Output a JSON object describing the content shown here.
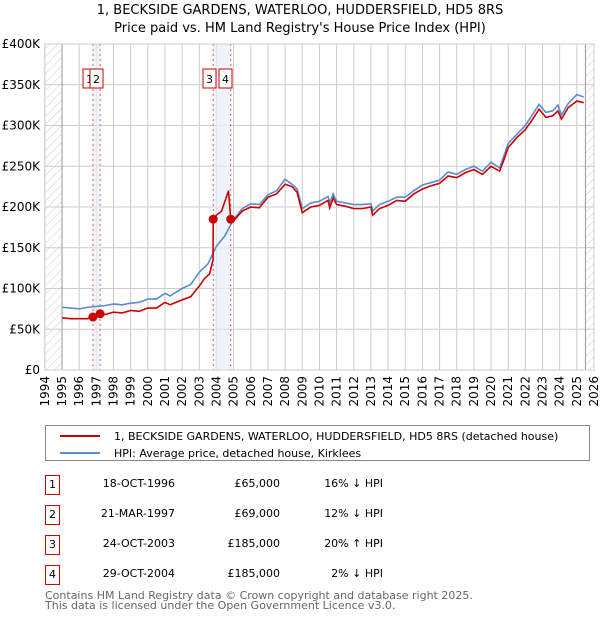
{
  "chart_data": {
    "type": "line",
    "title": "1, BECKSIDE GARDENS, WATERLOO, HUDDERSFIELD, HD5 8RS",
    "subtitle": "Price paid vs. HM Land Registry's House Price Index (HPI)",
    "xlim": [
      1994,
      2026
    ],
    "ylim": [
      0,
      400000
    ],
    "y_ticks": [
      "£0",
      "£50K",
      "£100K",
      "£150K",
      "£200K",
      "£250K",
      "£300K",
      "£350K",
      "£400K"
    ],
    "y_tick_values": [
      0,
      50000,
      100000,
      150000,
      200000,
      250000,
      300000,
      350000,
      400000
    ],
    "x_ticks": [
      "1994",
      "1995",
      "1996",
      "1997",
      "1998",
      "1999",
      "2000",
      "2001",
      "2002",
      "2003",
      "2004",
      "2005",
      "2006",
      "2007",
      "2008",
      "2009",
      "2010",
      "2011",
      "2012",
      "2013",
      "2014",
      "2015",
      "2016",
      "2017",
      "2018",
      "2019",
      "2020",
      "2021",
      "2022",
      "2023",
      "2024",
      "2025",
      "2026"
    ],
    "grid": true,
    "data_range": [
      1995,
      2025.5
    ],
    "series": [
      {
        "name": "1, BECKSIDE GARDENS, WATERLOO, HUDDERSFIELD, HD5 8RS (detached house)",
        "color": "#cc0000",
        "points": [
          [
            1995,
            64
          ],
          [
            1995.5,
            63
          ],
          [
            1996,
            63
          ],
          [
            1996.5,
            63
          ],
          [
            1996.8,
            65
          ],
          [
            1997.22,
            69
          ],
          [
            1997.5,
            68
          ],
          [
            1998,
            71
          ],
          [
            1998.5,
            70
          ],
          [
            1999,
            73
          ],
          [
            1999.5,
            72
          ],
          [
            2000,
            76
          ],
          [
            2000.5,
            76
          ],
          [
            2001,
            83
          ],
          [
            2001.3,
            80
          ],
          [
            2002,
            86
          ],
          [
            2002.5,
            90
          ],
          [
            2003,
            103
          ],
          [
            2003.3,
            112
          ],
          [
            2003.6,
            118
          ],
          [
            2003.8,
            135
          ],
          [
            2003.81,
            185
          ],
          [
            2004,
            190
          ],
          [
            2004.3,
            195
          ],
          [
            2004.7,
            220
          ],
          [
            2004.83,
            185
          ],
          [
            2005,
            183
          ],
          [
            2005.5,
            195
          ],
          [
            2006,
            200
          ],
          [
            2006.5,
            199
          ],
          [
            2007,
            212
          ],
          [
            2007.5,
            216
          ],
          [
            2008,
            228
          ],
          [
            2008.4,
            225
          ],
          [
            2008.7,
            218
          ],
          [
            2009,
            193
          ],
          [
            2009.5,
            200
          ],
          [
            2010,
            202
          ],
          [
            2010.5,
            208
          ],
          [
            2010.6,
            199
          ],
          [
            2010.8,
            211
          ],
          [
            2011,
            203
          ],
          [
            2011.5,
            201
          ],
          [
            2012,
            198
          ],
          [
            2012.5,
            198
          ],
          [
            2013,
            200
          ],
          [
            2013.1,
            190
          ],
          [
            2013.5,
            198
          ],
          [
            2014,
            202
          ],
          [
            2014.5,
            208
          ],
          [
            2015,
            207
          ],
          [
            2015.5,
            216
          ],
          [
            2016,
            222
          ],
          [
            2016.5,
            226
          ],
          [
            2017,
            229
          ],
          [
            2017.5,
            238
          ],
          [
            2018,
            236
          ],
          [
            2018.5,
            242
          ],
          [
            2019,
            246
          ],
          [
            2019.5,
            240
          ],
          [
            2020,
            250
          ],
          [
            2020.5,
            244
          ],
          [
            2020.7,
            255
          ],
          [
            2021,
            273
          ],
          [
            2021.5,
            285
          ],
          [
            2022,
            295
          ],
          [
            2022.5,
            310
          ],
          [
            2022.8,
            320
          ],
          [
            2023.2,
            310
          ],
          [
            2023.6,
            312
          ],
          [
            2023.9,
            318
          ],
          [
            2024.1,
            308
          ],
          [
            2024.5,
            322
          ],
          [
            2025,
            330
          ],
          [
            2025.4,
            328
          ]
        ]
      },
      {
        "name": "HPI: Average price, detached house, Kirklees",
        "color": "#5b8bd0",
        "points": [
          [
            1995,
            77
          ],
          [
            1995.5,
            76
          ],
          [
            1996,
            75
          ],
          [
            1996.5,
            77
          ],
          [
            1997,
            78
          ],
          [
            1997.5,
            79
          ],
          [
            1998,
            81
          ],
          [
            1998.5,
            80
          ],
          [
            1999,
            82
          ],
          [
            1999.5,
            83
          ],
          [
            2000,
            87
          ],
          [
            2000.5,
            87
          ],
          [
            2001,
            94
          ],
          [
            2001.3,
            91
          ],
          [
            2002,
            100
          ],
          [
            2002.5,
            105
          ],
          [
            2003,
            120
          ],
          [
            2003.5,
            130
          ],
          [
            2004,
            152
          ],
          [
            2004.5,
            165
          ],
          [
            2005,
            185
          ],
          [
            2005.5,
            198
          ],
          [
            2006,
            204
          ],
          [
            2006.5,
            203
          ],
          [
            2007,
            215
          ],
          [
            2007.5,
            220
          ],
          [
            2008,
            234
          ],
          [
            2008.4,
            228
          ],
          [
            2008.7,
            222
          ],
          [
            2009,
            198
          ],
          [
            2009.5,
            205
          ],
          [
            2010,
            207
          ],
          [
            2010.5,
            213
          ],
          [
            2010.6,
            205
          ],
          [
            2010.8,
            216
          ],
          [
            2011,
            207
          ],
          [
            2011.5,
            205
          ],
          [
            2012,
            203
          ],
          [
            2012.5,
            203
          ],
          [
            2013,
            204
          ],
          [
            2013.1,
            195
          ],
          [
            2013.5,
            203
          ],
          [
            2014,
            207
          ],
          [
            2014.5,
            212
          ],
          [
            2015,
            212
          ],
          [
            2015.5,
            220
          ],
          [
            2016,
            227
          ],
          [
            2016.5,
            230
          ],
          [
            2017,
            233
          ],
          [
            2017.5,
            243
          ],
          [
            2018,
            240
          ],
          [
            2018.5,
            246
          ],
          [
            2019,
            250
          ],
          [
            2019.5,
            244
          ],
          [
            2020,
            255
          ],
          [
            2020.5,
            248
          ],
          [
            2020.7,
            260
          ],
          [
            2021,
            278
          ],
          [
            2021.5,
            289
          ],
          [
            2022,
            300
          ],
          [
            2022.5,
            316
          ],
          [
            2022.8,
            326
          ],
          [
            2023.2,
            316
          ],
          [
            2023.6,
            318
          ],
          [
            2023.9,
            325
          ],
          [
            2024.1,
            313
          ],
          [
            2024.5,
            327
          ],
          [
            2025,
            338
          ],
          [
            2025.4,
            335
          ]
        ]
      }
    ],
    "value_unit_note": "points in £K",
    "sales": [
      {
        "n": "1",
        "year": 1996.8,
        "price": 65
      },
      {
        "n": "2",
        "year": 1997.22,
        "price": 69
      },
      {
        "n": "3",
        "year": 2003.81,
        "price": 185
      },
      {
        "n": "4",
        "year": 2004.83,
        "price": 185
      }
    ]
  },
  "legend": {
    "property": "1, BECKSIDE GARDENS, WATERLOO, HUDDERSFIELD, HD5 8RS (detached house)",
    "hpi": "HPI: Average price, detached house, Kirklees"
  },
  "transactions": [
    {
      "n": "1",
      "date": "18-OCT-1996",
      "price": "£65,000",
      "hpi": "16% ↓ HPI"
    },
    {
      "n": "2",
      "date": "21-MAR-1997",
      "price": "£69,000",
      "hpi": "12% ↓ HPI"
    },
    {
      "n": "3",
      "date": "24-OCT-2003",
      "price": "£185,000",
      "hpi": "20% ↑ HPI"
    },
    {
      "n": "4",
      "date": "29-OCT-2004",
      "price": "£185,000",
      "hpi": "2% ↓ HPI"
    }
  ],
  "footer": {
    "line1": "Contains HM Land Registry data © Crown copyright and database right 2025.",
    "line2": "This data is licensed under the Open Government Licence v3.0."
  }
}
